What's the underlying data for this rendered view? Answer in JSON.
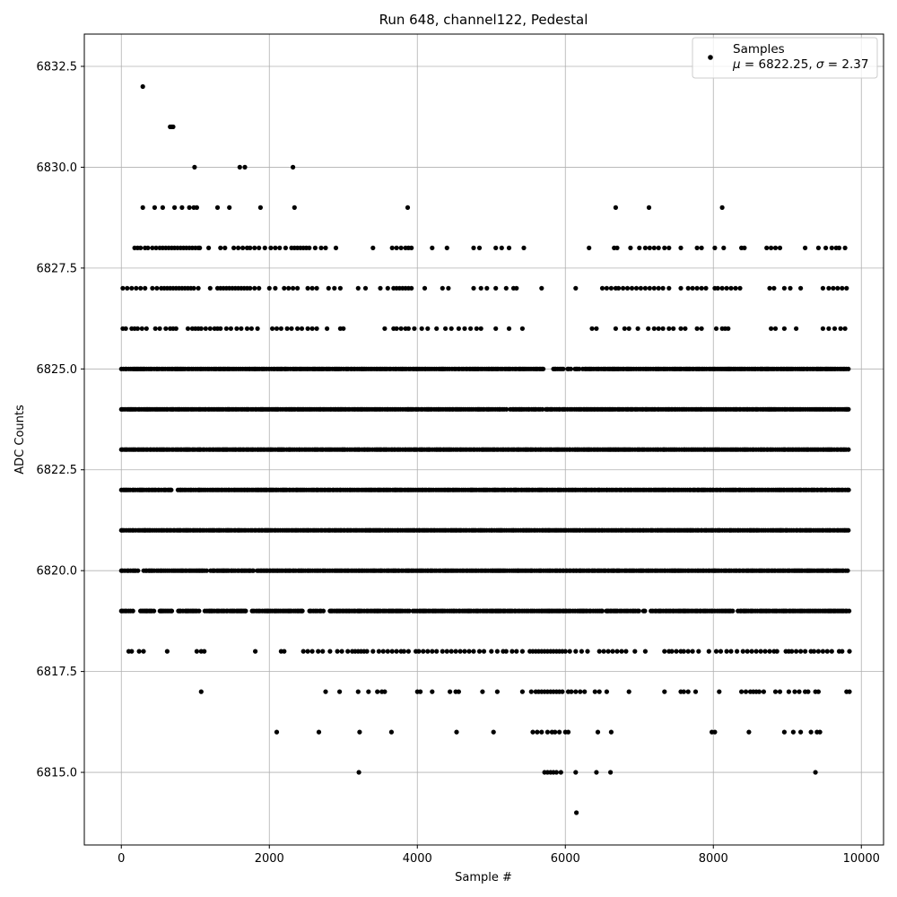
{
  "chart_data": {
    "type": "scatter",
    "title": "Run 648, channel122, Pedestal",
    "xlabel": "Sample #",
    "ylabel": "ADC Counts",
    "xlim": [
      -500,
      10300
    ],
    "ylim": [
      6813.2,
      6833.3
    ],
    "xticks": [
      0,
      2000,
      4000,
      6000,
      8000,
      10000
    ],
    "xtick_labels": [
      "0",
      "2000",
      "4000",
      "6000",
      "8000",
      "10000"
    ],
    "yticks": [
      6815.0,
      6817.5,
      6820.0,
      6822.5,
      6825.0,
      6827.5,
      6830.0,
      6832.5
    ],
    "ytick_labels": [
      "6815.0",
      "6817.5",
      "6820.0",
      "6822.5",
      "6825.0",
      "6827.5",
      "6830.0",
      "6832.5"
    ],
    "grid": true,
    "marker_color": "#000000",
    "legend": {
      "placement": "top-right",
      "series_label": "Samples",
      "stats_mu_symbol": "μ",
      "stats_mu_eq": " = 6822.25, ",
      "stats_sigma_symbol": "σ",
      "stats_sigma_eq": " = 2.37"
    },
    "series": [
      {
        "points_by_level": [
          {
            "y": 6832,
            "x": [
              290
            ]
          },
          {
            "y": 6831,
            "x": [
              660,
              680,
              700
            ]
          },
          {
            "y": 6830,
            "x": [
              990,
              1600,
              1670,
              2320
            ]
          },
          {
            "y": 6829,
            "x": [
              290,
              450,
              560,
              720,
              820,
              920,
              980,
              1020,
              1300,
              1460,
              1880,
              2340,
              3870,
              6680,
              7130,
              8120
            ]
          },
          {
            "y": 6828,
            "x": [
              180,
              220,
              260,
              320,
              360,
              420,
              470,
              520,
              560,
              600,
              640,
              680,
              720,
              760,
              800,
              840,
              880,
              920,
              960,
              1000,
              1040,
              1060,
              1180,
              1340,
              1400,
              1520,
              1580,
              1640,
              1700,
              1740,
              1800,
              1860,
              1940,
              2020,
              2080,
              2140,
              2220,
              2300,
              2340,
              2380,
              2420,
              2460,
              2500,
              2540,
              2620,
              2700,
              2760,
              2900,
              3400,
              3660,
              3720,
              3780,
              3840,
              3880,
              3920,
              4200,
              4400,
              4760,
              4840,
              5060,
              5140,
              5240,
              5440,
              6320,
              6660,
              6700,
              6880,
              7000,
              7080,
              7140,
              7200,
              7260,
              7340,
              7400,
              7560,
              7780,
              7840,
              8020,
              8140,
              8380,
              8420,
              8720,
              8780,
              8840,
              8900,
              9240,
              9420,
              9520,
              9600,
              9660,
              9700,
              9780
            ]
          },
          {
            "y": 6827,
            "x": [
              20,
              80,
              140,
              200,
              260,
              320,
              420,
              480,
              540,
              580,
              620,
              660,
              700,
              740,
              780,
              820,
              860,
              900,
              940,
              980,
              1040,
              1200,
              1300,
              1340,
              1380,
              1420,
              1460,
              1500,
              1540,
              1580,
              1620,
              1660,
              1700,
              1740,
              1800,
              1860,
              2000,
              2080,
              2200,
              2260,
              2320,
              2380,
              2520,
              2580,
              2640,
              2800,
              2880,
              2960,
              3200,
              3300,
              3500,
              3600,
              3680,
              3720,
              3760,
              3800,
              3840,
              3880,
              3920,
              4100,
              4340,
              4420,
              4760,
              4860,
              4940,
              5060,
              5200,
              5300,
              5340,
              5680,
              6140,
              6500,
              6560,
              6620,
              6680,
              6720,
              6780,
              6840,
              6900,
              6960,
              7020,
              7080,
              7140,
              7200,
              7260,
              7320,
              7400,
              7560,
              7660,
              7720,
              7780,
              7840,
              7900,
              8020,
              8060,
              8120,
              8180,
              8240,
              8300,
              8360,
              8760,
              8820,
              8960,
              9040,
              9180,
              9480,
              9560,
              9620,
              9680,
              9740,
              9800
            ]
          },
          {
            "y": 6826,
            "x": [
              20,
              60,
              140,
              180,
              220,
              280,
              340,
              460,
              520,
              600,
              660,
              700,
              740,
              900,
              960,
              1000,
              1040,
              1080,
              1140,
              1200,
              1260,
              1300,
              1340,
              1420,
              1480,
              1560,
              1620,
              1700,
              1760,
              1840,
              2040,
              2100,
              2160,
              2240,
              2300,
              2380,
              2440,
              2520,
              2580,
              2640,
              2780,
              2960,
              3000,
              3560,
              3680,
              3720,
              3780,
              3840,
              3880,
              3960,
              4060,
              4140,
              4260,
              4380,
              4460,
              4560,
              4640,
              4720,
              4800,
              4860,
              5060,
              5240,
              5420,
              6360,
              6420,
              6680,
              6800,
              6860,
              6980,
              7120,
              7200,
              7260,
              7320,
              7400,
              7460,
              7560,
              7620,
              7780,
              7840,
              8040,
              8120,
              8160,
              8200,
              8780,
              8840,
              8960,
              9120,
              9480,
              9560,
              9640,
              9720,
              9780
            ]
          },
          {
            "y": 6825,
            "dense": true,
            "x_start": 0,
            "x_end": 9840,
            "gaps": [
              [
                5720,
                5820
              ],
              [
                5990,
                6030
              ],
              [
                6080,
                6120
              ],
              [
                6190,
                6230
              ]
            ]
          },
          {
            "y": 6824,
            "dense": true,
            "x_start": 0,
            "x_end": 9840,
            "gaps": [
              [
                5220,
                5250
              ],
              [
                5700,
                5730
              ],
              [
                6100,
                6120
              ]
            ]
          },
          {
            "y": 6823,
            "dense": true,
            "x_start": 0,
            "x_end": 9840,
            "gaps": []
          },
          {
            "y": 6822,
            "dense": true,
            "x_start": 0,
            "x_end": 9840,
            "gaps": [
              [
                700,
                760
              ]
            ]
          },
          {
            "y": 6821,
            "dense": true,
            "x_start": 0,
            "x_end": 9840,
            "gaps": []
          },
          {
            "y": 6820,
            "dense": true,
            "x_start": 0,
            "x_end": 9840,
            "gaps": [
              [
                240,
                300
              ],
              [
                1170,
                1200
              ],
              [
                1790,
                1820
              ]
            ]
          },
          {
            "y": 6819,
            "dense": true,
            "x_start": 0,
            "x_end": 9840,
            "gaps": [
              [
                180,
                250
              ],
              [
                450,
                520
              ],
              [
                700,
                760
              ],
              [
                1060,
                1100
              ],
              [
                1700,
                1760
              ],
              [
                2460,
                2520
              ],
              [
                2740,
                2800
              ],
              [
                3900,
                3940
              ],
              [
                6500,
                6540
              ],
              [
                7000,
                7040
              ],
              [
                7100,
                7140
              ],
              [
                8280,
                8330
              ]
            ]
          },
          {
            "y": 6818,
            "x": [
              100,
              140,
              240,
              300,
              620,
              1020,
              1080,
              1120,
              1810,
              2160,
              2200,
              2460,
              2520,
              2580,
              2660,
              2720,
              2820,
              2920,
              2980,
              3060,
              3120,
              3160,
              3200,
              3240,
              3280,
              3320,
              3400,
              3480,
              3540,
              3600,
              3660,
              3720,
              3780,
              3820,
              3880,
              3980,
              4020,
              4080,
              4140,
              4200,
              4260,
              4340,
              4400,
              4460,
              4520,
              4580,
              4640,
              4700,
              4760,
              4840,
              4900,
              5000,
              5080,
              5160,
              5200,
              5280,
              5340,
              5420,
              5520,
              5560,
              5600,
              5640,
              5680,
              5720,
              5760,
              5800,
              5840,
              5880,
              5920,
              5960,
              6000,
              6060,
              6140,
              6220,
              6300,
              6460,
              6520,
              6580,
              6640,
              6700,
              6760,
              6820,
              6940,
              7080,
              7340,
              7400,
              7440,
              7500,
              7560,
              7600,
              7660,
              7720,
              7800,
              7940,
              8040,
              8100,
              8180,
              8240,
              8320,
              8400,
              8460,
              8520,
              8580,
              8640,
              8700,
              8760,
              8820,
              8860,
              8980,
              9020,
              9060,
              9120,
              9180,
              9240,
              9320,
              9360,
              9420,
              9480,
              9540,
              9600,
              9700,
              9740,
              9840
            ]
          },
          {
            "y": 6817,
            "x": [
              1080,
              2760,
              2950,
              3200,
              3340,
              3460,
              3520,
              3560,
              4000,
              4040,
              4200,
              4440,
              4520,
              4560,
              4880,
              5080,
              5420,
              5540,
              5600,
              5640,
              5680,
              5720,
              5760,
              5800,
              5840,
              5880,
              5920,
              5960,
              6040,
              6080,
              6140,
              6200,
              6260,
              6400,
              6460,
              6560,
              6860,
              7340,
              7560,
              7600,
              7660,
              7760,
              8080,
              8380,
              8440,
              8500,
              8540,
              8580,
              8620,
              8680,
              8840,
              8900,
              9020,
              9100,
              9160,
              9240,
              9280,
              9380,
              9420,
              9800,
              9840
            ]
          },
          {
            "y": 6816,
            "x": [
              2100,
              2670,
              3220,
              3650,
              4530,
              5030,
              5560,
              5620,
              5680,
              5760,
              5820,
              5860,
              5920,
              6000,
              6040,
              6440,
              6620,
              7980,
              8020,
              8480,
              8960,
              9080,
              9180,
              9320,
              9400,
              9440
            ]
          },
          {
            "y": 6815,
            "x": [
              3210,
              5720,
              5760,
              5800,
              5840,
              5880,
              5940,
              6140,
              6420,
              6610,
              9380
            ]
          },
          {
            "y": 6814,
            "x": [
              6150
            ]
          }
        ]
      }
    ]
  }
}
